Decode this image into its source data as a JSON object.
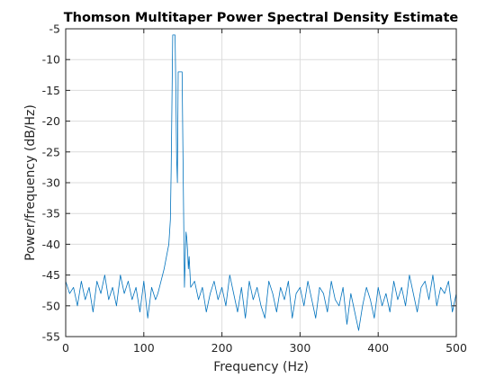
{
  "chart_data": {
    "type": "line",
    "title": "Thomson Multitaper Power Spectral Density Estimate",
    "xlabel": "Frequency (Hz)",
    "ylabel": "Power/frequency (dB/Hz)",
    "xlim": [
      0,
      500
    ],
    "ylim": [
      -55,
      -5
    ],
    "xticks": [
      0,
      100,
      200,
      300,
      400,
      500
    ],
    "yticks": [
      -5,
      -10,
      -15,
      -20,
      -25,
      -30,
      -35,
      -40,
      -45,
      -50,
      -55
    ],
    "xtick_labels": [
      "0",
      "100",
      "200",
      "300",
      "400",
      "500"
    ],
    "ytick_labels": [
      "-5",
      "-10",
      "-15",
      "-20",
      "-25",
      "-30",
      "-35",
      "-40",
      "-45",
      "-50",
      "-55"
    ],
    "grid": true,
    "line_color": "#0072bd",
    "series": [
      {
        "x": [
          0,
          5,
          10,
          15,
          20,
          25,
          30,
          35,
          40,
          45,
          50,
          55,
          60,
          65,
          70,
          75,
          80,
          85,
          90,
          95,
          100,
          105,
          110,
          115,
          118,
          122,
          126,
          129,
          132,
          134,
          135,
          137,
          138,
          140,
          141,
          142,
          143,
          144,
          145,
          146,
          147,
          149,
          150,
          152,
          154,
          155,
          156,
          157,
          158,
          160,
          165,
          170,
          175,
          180,
          185,
          190,
          195,
          200,
          205,
          210,
          215,
          220,
          225,
          230,
          235,
          240,
          245,
          250,
          255,
          260,
          265,
          270,
          275,
          280,
          285,
          290,
          295,
          300,
          305,
          310,
          315,
          320,
          325,
          330,
          335,
          340,
          345,
          350,
          355,
          360,
          365,
          370,
          375,
          380,
          385,
          390,
          395,
          400,
          405,
          410,
          415,
          420,
          425,
          430,
          435,
          440,
          445,
          450,
          455,
          460,
          465,
          470,
          475,
          480,
          485,
          490,
          495,
          500
        ],
        "y": [
          -46,
          -48,
          -47,
          -50,
          -46,
          -49,
          -47,
          -51,
          -46,
          -48,
          -45,
          -49,
          -47,
          -50,
          -45,
          -48,
          -46,
          -49,
          -47,
          -51,
          -46,
          -52,
          -47,
          -49,
          -48,
          -46,
          -44,
          -42,
          -40,
          -36,
          -28,
          -6,
          -6,
          -6,
          -15,
          -26,
          -30,
          -12,
          -12,
          -12,
          -12,
          -12,
          -24,
          -47,
          -38,
          -39,
          -41,
          -44,
          -42,
          -47,
          -46,
          -49,
          -47,
          -51,
          -48,
          -46,
          -49,
          -47,
          -50,
          -45,
          -48,
          -51,
          -47,
          -52,
          -46,
          -49,
          -47,
          -50,
          -52,
          -46,
          -48,
          -51,
          -47,
          -49,
          -46,
          -52,
          -48,
          -47,
          -50,
          -46,
          -49,
          -52,
          -47,
          -48,
          -51,
          -46,
          -49,
          -50,
          -47,
          -53,
          -48,
          -51,
          -54,
          -50,
          -47,
          -49,
          -52,
          -47,
          -50,
          -48,
          -51,
          -46,
          -49,
          -47,
          -50,
          -45,
          -48,
          -51,
          -47,
          -46,
          -49,
          -45,
          -50,
          -47,
          -48,
          -46,
          -51,
          -48
        ]
      }
    ]
  }
}
